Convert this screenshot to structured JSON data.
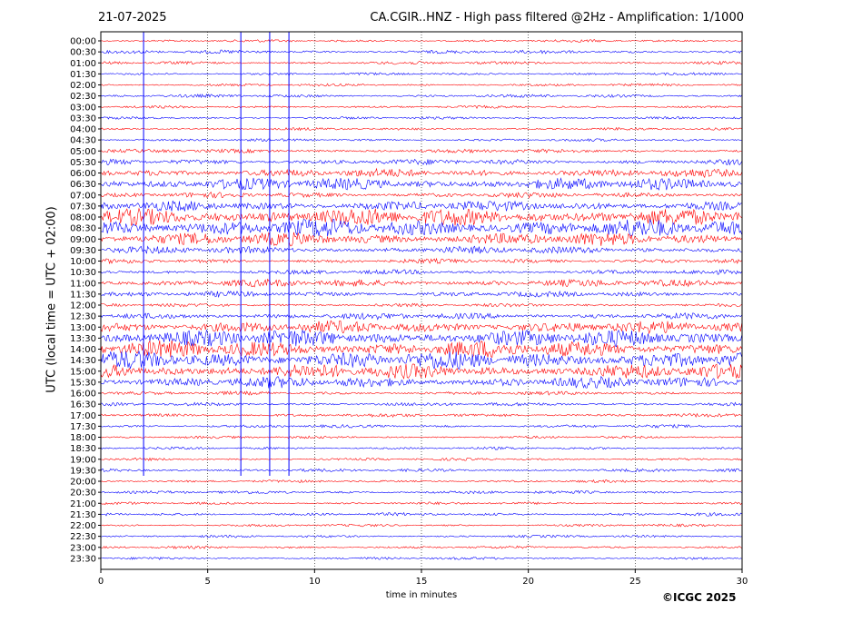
{
  "header": {
    "date": "21-07-2025",
    "title": "CA.CGIR..HNZ - High pass filtered @2Hz - Amplification: 1/1000"
  },
  "footer": {
    "copyright": "©ICGC 2025"
  },
  "chart_data": {
    "type": "line",
    "title": "CA.CGIR..HNZ - High pass filtered @2Hz - Amplification: 1/1000",
    "xlabel": "time in minutes",
    "ylabel": "UTC (local time = UTC + 02:00)",
    "xlim": [
      0,
      30
    ],
    "xticks": [
      0,
      5,
      10,
      15,
      20,
      25,
      30
    ],
    "vertical_grid": "dotted at every 5 minutes",
    "row_labels": [
      "00:00",
      "00:30",
      "01:00",
      "01:30",
      "02:00",
      "02:30",
      "03:00",
      "03:30",
      "04:00",
      "04:30",
      "05:00",
      "05:30",
      "06:00",
      "06:30",
      "07:00",
      "07:30",
      "08:00",
      "08:30",
      "09:00",
      "09:30",
      "10:00",
      "10:30",
      "11:00",
      "11:30",
      "12:00",
      "12:30",
      "13:00",
      "13:30",
      "14:00",
      "14:30",
      "15:00",
      "15:30",
      "16:00",
      "16:30",
      "17:00",
      "17:30",
      "18:00",
      "18:30",
      "19:00",
      "19:30",
      "20:00",
      "20:30",
      "21:00",
      "21:30",
      "22:00",
      "22:30",
      "23:00",
      "23:30"
    ],
    "colors": {
      "even_rows": "#ff0000",
      "odd_rows": "#0000ff"
    },
    "activity_level": [
      0.05,
      0.1,
      0.08,
      0.05,
      0.05,
      0.08,
      0.05,
      0.05,
      0.05,
      0.05,
      0.12,
      0.2,
      0.35,
      0.55,
      0.2,
      0.45,
      0.95,
      0.9,
      0.6,
      0.3,
      0.15,
      0.15,
      0.3,
      0.2,
      0.1,
      0.25,
      0.55,
      0.8,
      0.8,
      0.85,
      0.7,
      0.5,
      0.1,
      0.1,
      0.1,
      0.08,
      0.05,
      0.05,
      0.05,
      0.08,
      0.05,
      0.08,
      0.05,
      0.08,
      0.05,
      0.05,
      0.05,
      0.05
    ],
    "spikes": [
      {
        "minute": 2.0,
        "start": "00:00",
        "end": "19:30"
      },
      {
        "minute": 6.55,
        "start": "00:00",
        "end": "19:30"
      },
      {
        "minute": 7.9,
        "start": "00:00",
        "end": "19:30"
      },
      {
        "minute": 8.8,
        "start": "00:00",
        "end": "19:30"
      }
    ]
  }
}
